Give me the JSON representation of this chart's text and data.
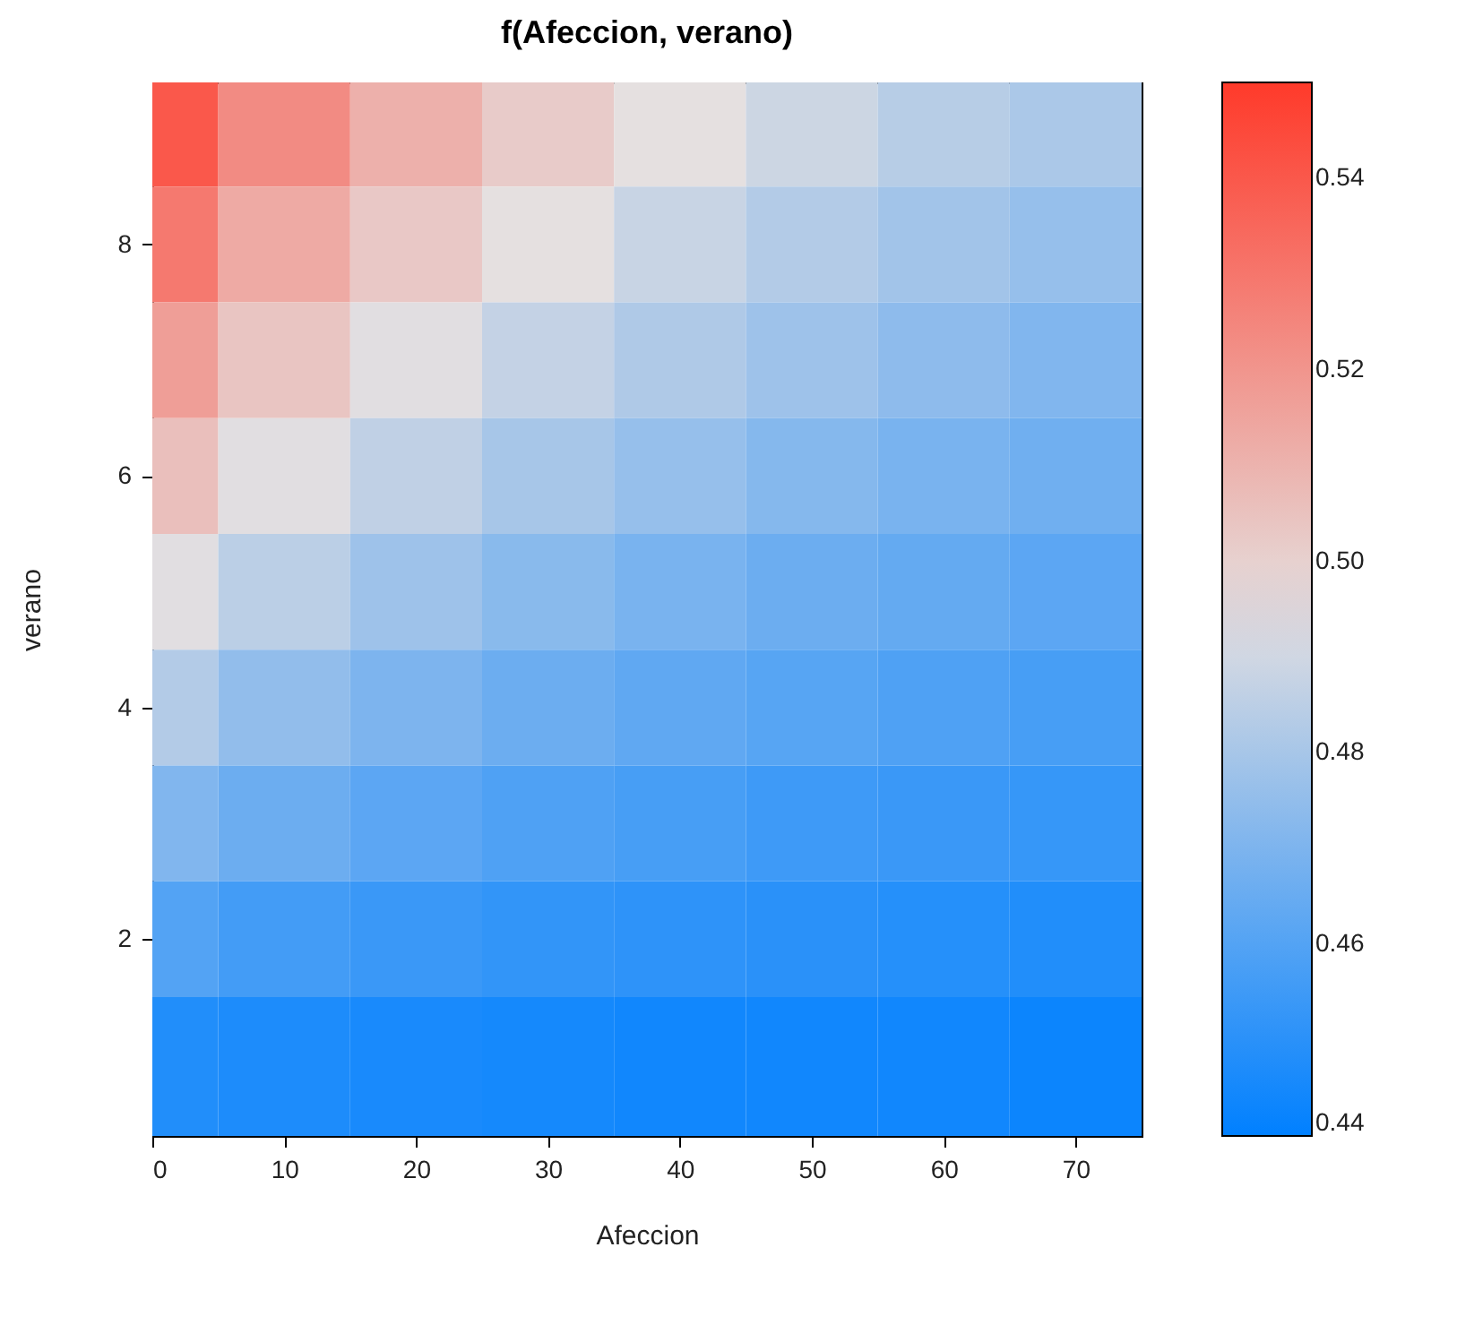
{
  "chart_data": {
    "type": "heatmap",
    "title": "f(Afeccion, verano)",
    "xlabel": "Afeccion",
    "ylabel": "verano",
    "x": [
      0,
      10,
      20,
      30,
      40,
      50,
      60,
      70
    ],
    "y": [
      9,
      8,
      7,
      6,
      5,
      4,
      3,
      2,
      1
    ],
    "cells": [
      [
        0.54,
        0.523,
        0.511,
        0.502,
        0.495,
        0.489,
        0.484,
        0.481
      ],
      [
        0.529,
        0.513,
        0.503,
        0.495,
        0.488,
        0.483,
        0.479,
        0.476
      ],
      [
        0.517,
        0.504,
        0.494,
        0.487,
        0.482,
        0.478,
        0.474,
        0.471
      ],
      [
        0.506,
        0.494,
        0.486,
        0.48,
        0.476,
        0.472,
        0.469,
        0.467
      ],
      [
        0.494,
        0.485,
        0.478,
        0.473,
        0.469,
        0.466,
        0.464,
        0.462
      ],
      [
        0.483,
        0.475,
        0.47,
        0.466,
        0.463,
        0.461,
        0.459,
        0.457
      ],
      [
        0.471,
        0.466,
        0.462,
        0.459,
        0.457,
        0.455,
        0.454,
        0.453
      ],
      [
        0.46,
        0.456,
        0.454,
        0.452,
        0.451,
        0.45,
        0.449,
        0.448
      ],
      [
        0.448,
        0.447,
        0.446,
        0.445,
        0.444,
        0.444,
        0.444,
        0.443
      ]
    ],
    "xlim": [
      0,
      75
    ],
    "xticks": [
      0,
      10,
      20,
      30,
      40,
      50,
      60,
      70
    ],
    "ylim": [
      0.3,
      9.4
    ],
    "yticks": [
      2,
      4,
      6,
      8
    ],
    "clim": [
      0.44,
      0.55
    ],
    "cticks": [
      0.44,
      0.46,
      0.48,
      {
        "value": 0.5,
        "label": "0.50"
      },
      0.52,
      0.54
    ],
    "colors": [
      "#0080ff",
      "#e5e0e0",
      "#ff3a2a"
    ],
    "grid": false
  }
}
